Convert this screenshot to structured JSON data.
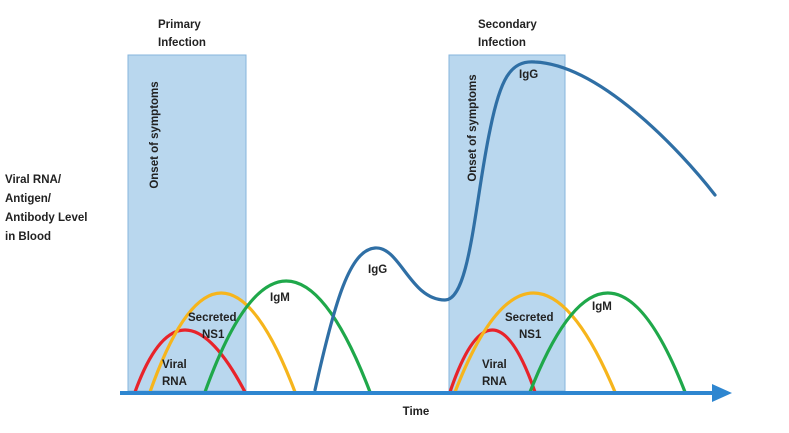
{
  "primary": {
    "title": [
      "Primary",
      "Infection"
    ],
    "onset": "Onset of symptoms",
    "viral_rna": [
      "Viral",
      "RNA"
    ],
    "ns1": [
      "Secreted",
      "NS1"
    ],
    "igm": "IgM"
  },
  "secondary": {
    "title": [
      "Secondary",
      "Infection"
    ],
    "onset": "Onset of symptoms",
    "viral_rna": [
      "Viral",
      "RNA"
    ],
    "ns1": [
      "Secreted",
      "NS1"
    ],
    "igm": "IgM",
    "igg": "IgG"
  },
  "igg_first": "IgG",
  "y_label": [
    "Viral RNA/",
    "Antigen/",
    "Antibody Level",
    "in Blood"
  ],
  "x_label": "Time"
}
